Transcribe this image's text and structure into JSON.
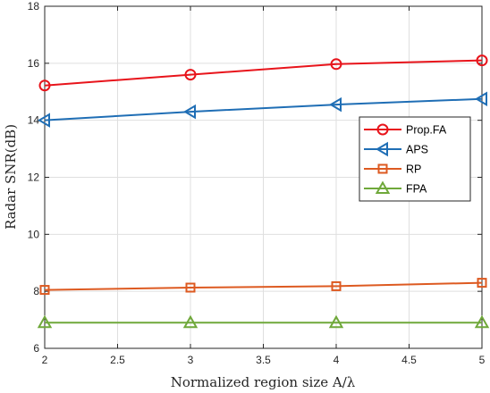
{
  "chart_data": {
    "type": "line",
    "title": "",
    "xlabel": "Normalized region size A/λ",
    "ylabel": "Radar SNR(dB)",
    "xlim": [
      2,
      5
    ],
    "ylim": [
      6,
      18
    ],
    "xticks": [
      2,
      2.5,
      3,
      3.5,
      4,
      4.5,
      5
    ],
    "xtick_labels": [
      "2",
      "2.5",
      "3",
      "3.5",
      "4",
      "4.5",
      "5"
    ],
    "yticks": [
      6,
      8,
      10,
      12,
      14,
      16,
      18
    ],
    "ytick_labels": [
      "6",
      "8",
      "10",
      "12",
      "14",
      "16",
      "18"
    ],
    "grid": true,
    "legend_position": "right-middle",
    "x": [
      2,
      3,
      4,
      5
    ],
    "series": [
      {
        "name": "Prop.FA",
        "values": [
          15.22,
          15.6,
          15.97,
          16.1
        ],
        "color": "#e8141b",
        "marker": "circle"
      },
      {
        "name": "APS",
        "values": [
          14.0,
          14.3,
          14.55,
          14.75
        ],
        "color": "#1f6eb5",
        "marker": "triangle-left"
      },
      {
        "name": "RP",
        "values": [
          8.05,
          8.13,
          8.18,
          8.3
        ],
        "color": "#dd5a21",
        "marker": "square"
      },
      {
        "name": "FPA",
        "values": [
          6.9,
          6.9,
          6.9,
          6.9
        ],
        "color": "#6fa83a",
        "marker": "triangle-up"
      }
    ]
  }
}
